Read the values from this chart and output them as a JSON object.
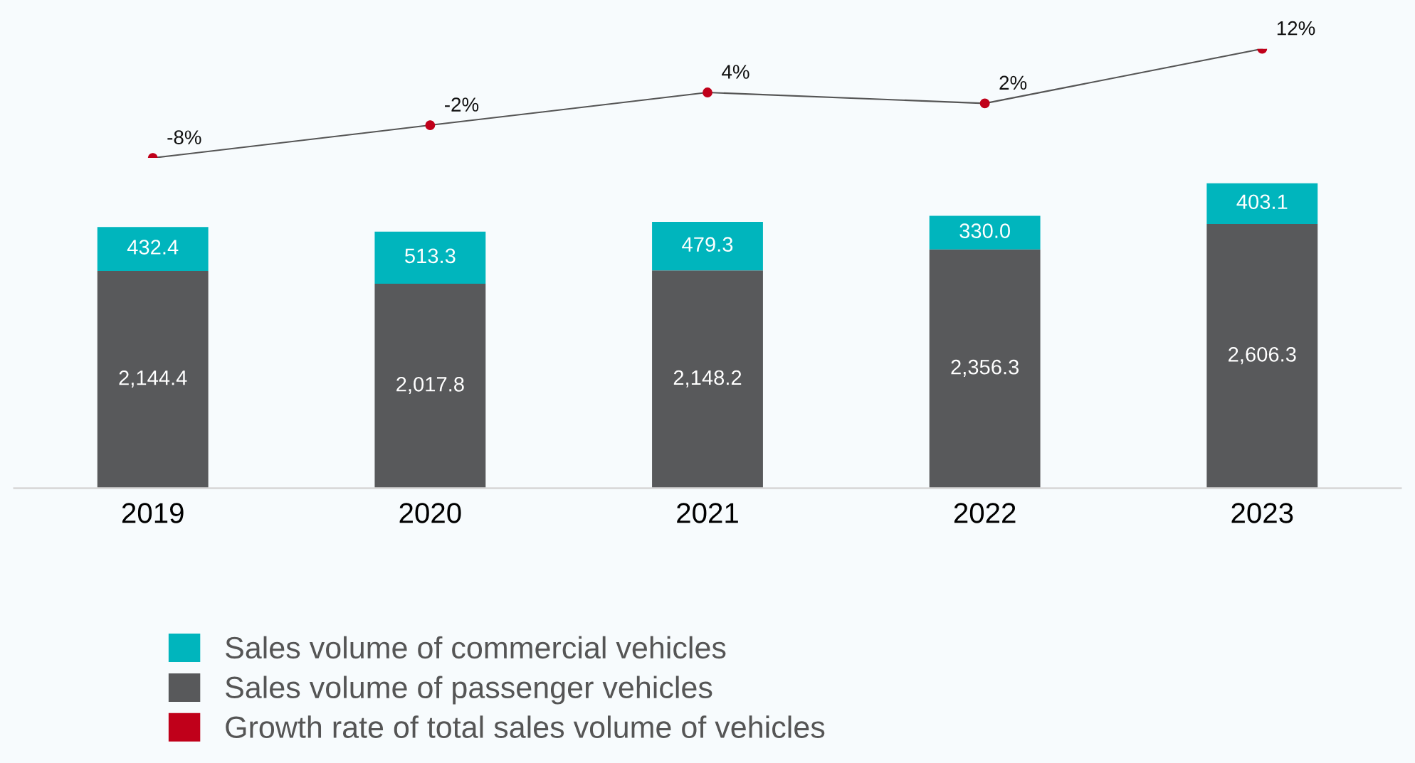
{
  "chart_data": [
    {
      "type": "bar",
      "stacked": true,
      "categories": [
        "2019",
        "2020",
        "2021",
        "2022",
        "2023"
      ],
      "series": [
        {
          "name": "Sales volume of passenger vehicles",
          "color": "#58595b",
          "values": [
            2144.4,
            2017.8,
            2148.2,
            2356.3,
            2606.3
          ],
          "value_labels": [
            "2,144.4",
            "2,017.8",
            "2,148.2",
            "2,356.3",
            "2,606.3"
          ]
        },
        {
          "name": "Sales volume of commercial vehicles",
          "color": "#00b5bd",
          "values": [
            432.4,
            513.3,
            479.3,
            330.0,
            403.1
          ],
          "value_labels": [
            "432.4",
            "513.3",
            "479.3",
            "330.0",
            "403.1"
          ]
        }
      ],
      "data_labels": true,
      "tick_labels": "x",
      "grid": false,
      "legend": "bottom left"
    },
    {
      "type": "line",
      "categories": [
        null,
        null,
        null,
        null,
        null
      ],
      "series": [
        {
          "name": "Growth rate of total sales volume of vehicles",
          "color": "#c0001a",
          "values": [
            -8,
            -2,
            4,
            2,
            12
          ],
          "value_labels": [
            "-8%",
            "-2%",
            "4%",
            "2%",
            "12%"
          ]
        }
      ],
      "data_labels": true,
      "tick_labels": false,
      "marker": "circle",
      "line_style": "solid",
      "grid": false,
      "legend": "bottom left"
    }
  ]
}
